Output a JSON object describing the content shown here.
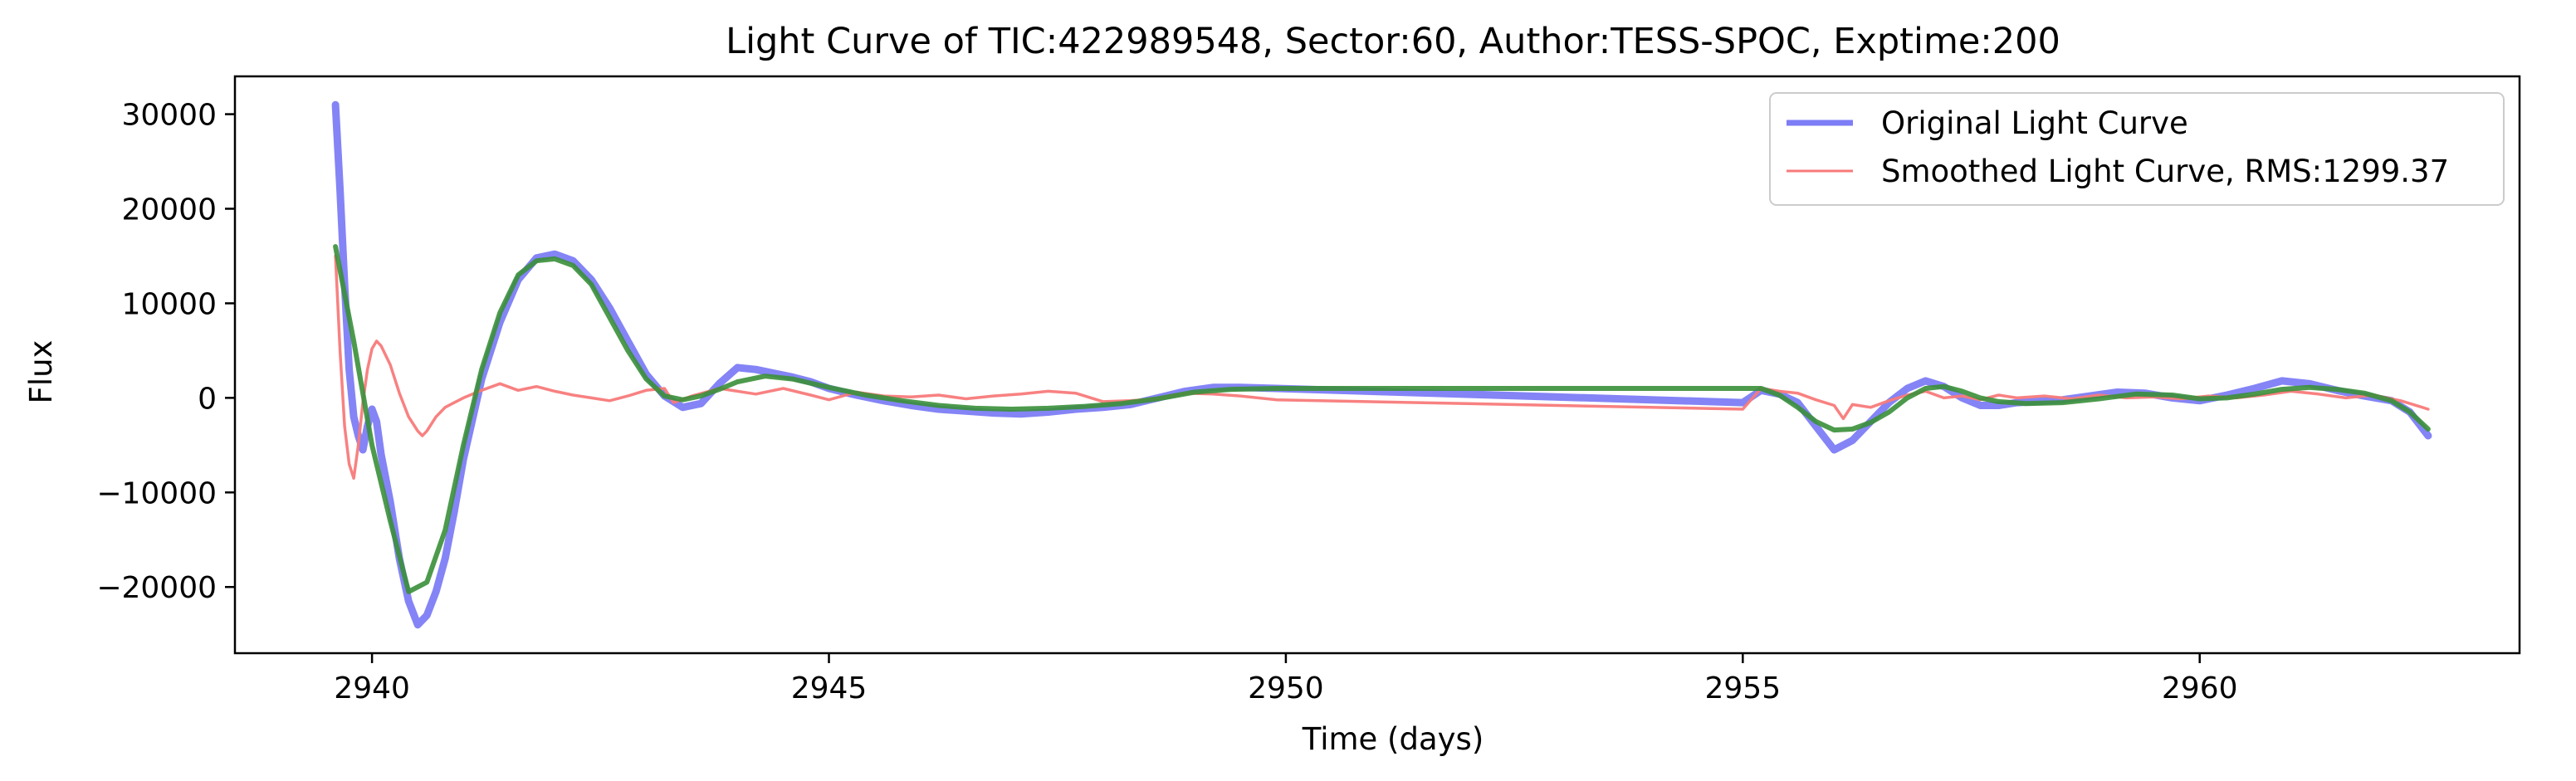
{
  "chart_data": {
    "type": "line",
    "title": "Light Curve of TIC:422989548, Sector:60, Author:TESS-SPOC, Exptime:200",
    "xlabel": "Time (days)",
    "ylabel": "Flux",
    "xlim": [
      2938.5,
      2963.5
    ],
    "ylim": [
      -27000,
      34000
    ],
    "xticks": [
      2940,
      2945,
      2950,
      2955,
      2960
    ],
    "yticks": [
      -20000,
      -10000,
      0,
      10000,
      20000,
      30000
    ],
    "grid": false,
    "legend_position": "upper right",
    "series": [
      {
        "name": "Original Light Curve",
        "color": "#6f6ff5",
        "data": [
          [
            2939.6,
            31000
          ],
          [
            2939.65,
            22000
          ],
          [
            2939.7,
            12000
          ],
          [
            2939.75,
            3000
          ],
          [
            2939.8,
            -2000
          ],
          [
            2939.85,
            -4000
          ],
          [
            2939.9,
            -5500
          ],
          [
            2939.95,
            -3000
          ],
          [
            2940.0,
            -1200
          ],
          [
            2940.05,
            -2500
          ],
          [
            2940.1,
            -6000
          ],
          [
            2940.2,
            -11000
          ],
          [
            2940.3,
            -17000
          ],
          [
            2940.4,
            -21500
          ],
          [
            2940.5,
            -24000
          ],
          [
            2940.6,
            -23000
          ],
          [
            2940.7,
            -20500
          ],
          [
            2940.8,
            -17000
          ],
          [
            2940.9,
            -12000
          ],
          [
            2941.0,
            -6500
          ],
          [
            2941.2,
            2000
          ],
          [
            2941.4,
            8000
          ],
          [
            2941.6,
            12500
          ],
          [
            2941.8,
            14800
          ],
          [
            2942.0,
            15200
          ],
          [
            2942.2,
            14500
          ],
          [
            2942.4,
            12500
          ],
          [
            2942.6,
            9500
          ],
          [
            2942.8,
            6000
          ],
          [
            2943.0,
            2500
          ],
          [
            2943.2,
            200
          ],
          [
            2943.4,
            -1000
          ],
          [
            2943.6,
            -600
          ],
          [
            2943.8,
            1500
          ],
          [
            2944.0,
            3200
          ],
          [
            2944.2,
            3000
          ],
          [
            2944.4,
            2600
          ],
          [
            2944.6,
            2200
          ],
          [
            2944.8,
            1700
          ],
          [
            2945.0,
            1000
          ],
          [
            2945.3,
            300
          ],
          [
            2945.6,
            -300
          ],
          [
            2945.9,
            -800
          ],
          [
            2946.2,
            -1200
          ],
          [
            2946.5,
            -1400
          ],
          [
            2946.8,
            -1600
          ],
          [
            2947.1,
            -1700
          ],
          [
            2947.4,
            -1500
          ],
          [
            2947.7,
            -1200
          ],
          [
            2948.0,
            -1000
          ],
          [
            2948.3,
            -700
          ],
          [
            2948.6,
            0
          ],
          [
            2948.9,
            700
          ],
          [
            2949.2,
            1100
          ],
          [
            2949.5,
            1100
          ],
          [
            2949.9,
            1000
          ],
          [
            2955.0,
            -500
          ],
          [
            2955.2,
            800
          ],
          [
            2955.4,
            400
          ],
          [
            2955.6,
            -500
          ],
          [
            2955.8,
            -3000
          ],
          [
            2956.0,
            -5500
          ],
          [
            2956.2,
            -4500
          ],
          [
            2956.4,
            -2500
          ],
          [
            2956.6,
            -500
          ],
          [
            2956.8,
            1000
          ],
          [
            2957.0,
            1800
          ],
          [
            2957.2,
            1200
          ],
          [
            2957.4,
            0
          ],
          [
            2957.6,
            -800
          ],
          [
            2957.8,
            -800
          ],
          [
            2958.0,
            -500
          ],
          [
            2958.2,
            -400
          ],
          [
            2958.5,
            -200
          ],
          [
            2958.8,
            200
          ],
          [
            2959.1,
            600
          ],
          [
            2959.4,
            500
          ],
          [
            2959.7,
            0
          ],
          [
            2960.0,
            -300
          ],
          [
            2960.3,
            300
          ],
          [
            2960.6,
            1000
          ],
          [
            2960.9,
            1800
          ],
          [
            2961.2,
            1500
          ],
          [
            2961.5,
            800
          ],
          [
            2961.8,
            200
          ],
          [
            2962.1,
            -300
          ],
          [
            2962.3,
            -1500
          ],
          [
            2962.5,
            -4000
          ]
        ]
      },
      {
        "name": "Smoothed Light Curve, RMS:1299.37",
        "color": "#f87a7a",
        "data": [
          [
            2939.6,
            15000
          ],
          [
            2939.65,
            5000
          ],
          [
            2939.7,
            -3000
          ],
          [
            2939.75,
            -7000
          ],
          [
            2939.8,
            -8500
          ],
          [
            2939.85,
            -5000
          ],
          [
            2939.9,
            -500
          ],
          [
            2939.95,
            3000
          ],
          [
            2940.0,
            5200
          ],
          [
            2940.05,
            6000
          ],
          [
            2940.1,
            5500
          ],
          [
            2940.2,
            3500
          ],
          [
            2940.3,
            500
          ],
          [
            2940.4,
            -2000
          ],
          [
            2940.5,
            -3500
          ],
          [
            2940.55,
            -4000
          ],
          [
            2940.6,
            -3500
          ],
          [
            2940.7,
            -2000
          ],
          [
            2940.8,
            -1000
          ],
          [
            2940.9,
            -500
          ],
          [
            2941.0,
            0
          ],
          [
            2941.2,
            800
          ],
          [
            2941.4,
            1500
          ],
          [
            2941.6,
            800
          ],
          [
            2941.8,
            1200
          ],
          [
            2942.0,
            700
          ],
          [
            2942.2,
            300
          ],
          [
            2942.4,
            0
          ],
          [
            2942.6,
            -300
          ],
          [
            2942.8,
            200
          ],
          [
            2943.0,
            800
          ],
          [
            2943.2,
            1000
          ],
          [
            2943.3,
            -500
          ],
          [
            2943.5,
            200
          ],
          [
            2943.8,
            1000
          ],
          [
            2944.0,
            700
          ],
          [
            2944.2,
            400
          ],
          [
            2944.5,
            1000
          ],
          [
            2944.8,
            300
          ],
          [
            2945.0,
            -200
          ],
          [
            2945.3,
            600
          ],
          [
            2945.6,
            200
          ],
          [
            2945.9,
            100
          ],
          [
            2946.2,
            300
          ],
          [
            2946.5,
            -100
          ],
          [
            2946.8,
            200
          ],
          [
            2947.1,
            400
          ],
          [
            2947.4,
            700
          ],
          [
            2947.7,
            500
          ],
          [
            2948.0,
            -400
          ],
          [
            2948.3,
            -300
          ],
          [
            2948.6,
            -100
          ],
          [
            2948.9,
            500
          ],
          [
            2949.2,
            400
          ],
          [
            2949.5,
            200
          ],
          [
            2949.9,
            -200
          ],
          [
            2955.0,
            -1200
          ],
          [
            2955.2,
            1000
          ],
          [
            2955.4,
            700
          ],
          [
            2955.6,
            500
          ],
          [
            2955.8,
            -200
          ],
          [
            2956.0,
            -800
          ],
          [
            2956.1,
            -2200
          ],
          [
            2956.2,
            -700
          ],
          [
            2956.4,
            -1000
          ],
          [
            2956.6,
            -300
          ],
          [
            2956.8,
            300
          ],
          [
            2957.0,
            700
          ],
          [
            2957.2,
            0
          ],
          [
            2957.4,
            200
          ],
          [
            2957.6,
            -200
          ],
          [
            2957.8,
            300
          ],
          [
            2958.0,
            0
          ],
          [
            2958.3,
            200
          ],
          [
            2958.6,
            -100
          ],
          [
            2958.9,
            300
          ],
          [
            2959.2,
            0
          ],
          [
            2959.5,
            100
          ],
          [
            2959.8,
            -100
          ],
          [
            2960.1,
            200
          ],
          [
            2960.4,
            0
          ],
          [
            2960.7,
            300
          ],
          [
            2961.0,
            700
          ],
          [
            2961.3,
            400
          ],
          [
            2961.6,
            0
          ],
          [
            2961.9,
            300
          ],
          [
            2962.2,
            -300
          ],
          [
            2962.5,
            -1200
          ]
        ]
      },
      {
        "color": "#3a8f3a",
        "data": [
          [
            2939.6,
            16000
          ],
          [
            2939.8,
            6000
          ],
          [
            2940.0,
            -5000
          ],
          [
            2940.2,
            -13000
          ],
          [
            2940.4,
            -20500
          ],
          [
            2940.6,
            -19500
          ],
          [
            2940.8,
            -14000
          ],
          [
            2941.0,
            -5000
          ],
          [
            2941.2,
            3000
          ],
          [
            2941.4,
            9000
          ],
          [
            2941.6,
            13000
          ],
          [
            2941.8,
            14500
          ],
          [
            2942.0,
            14700
          ],
          [
            2942.2,
            14000
          ],
          [
            2942.4,
            12000
          ],
          [
            2942.6,
            8500
          ],
          [
            2942.8,
            5000
          ],
          [
            2943.0,
            2000
          ],
          [
            2943.2,
            200
          ],
          [
            2943.4,
            -200
          ],
          [
            2943.6,
            200
          ],
          [
            2943.8,
            900
          ],
          [
            2944.0,
            1700
          ],
          [
            2944.3,
            2300
          ],
          [
            2944.6,
            2000
          ],
          [
            2945.0,
            1100
          ],
          [
            2945.4,
            300
          ],
          [
            2945.8,
            -300
          ],
          [
            2946.2,
            -800
          ],
          [
            2946.6,
            -1100
          ],
          [
            2947.0,
            -1200
          ],
          [
            2947.4,
            -1100
          ],
          [
            2947.8,
            -900
          ],
          [
            2948.2,
            -600
          ],
          [
            2948.6,
            -100
          ],
          [
            2949.0,
            600
          ],
          [
            2949.4,
            900
          ],
          [
            2949.9,
            1000
          ],
          [
            2955.0,
            1000
          ],
          [
            2955.2,
            1000
          ],
          [
            2955.4,
            300
          ],
          [
            2955.6,
            -1000
          ],
          [
            2955.8,
            -2500
          ],
          [
            2956.0,
            -3400
          ],
          [
            2956.2,
            -3300
          ],
          [
            2956.4,
            -2600
          ],
          [
            2956.6,
            -1500
          ],
          [
            2956.8,
            0
          ],
          [
            2957.0,
            1000
          ],
          [
            2957.2,
            1200
          ],
          [
            2957.4,
            700
          ],
          [
            2957.6,
            0
          ],
          [
            2957.8,
            -400
          ],
          [
            2958.1,
            -600
          ],
          [
            2958.5,
            -500
          ],
          [
            2958.9,
            -100
          ],
          [
            2959.3,
            400
          ],
          [
            2959.7,
            300
          ],
          [
            2960.0,
            -100
          ],
          [
            2960.3,
            0
          ],
          [
            2960.6,
            400
          ],
          [
            2960.9,
            900
          ],
          [
            2961.2,
            1100
          ],
          [
            2961.5,
            900
          ],
          [
            2961.8,
            500
          ],
          [
            2962.1,
            -300
          ],
          [
            2962.3,
            -1500
          ],
          [
            2962.5,
            -3300
          ]
        ]
      }
    ]
  }
}
